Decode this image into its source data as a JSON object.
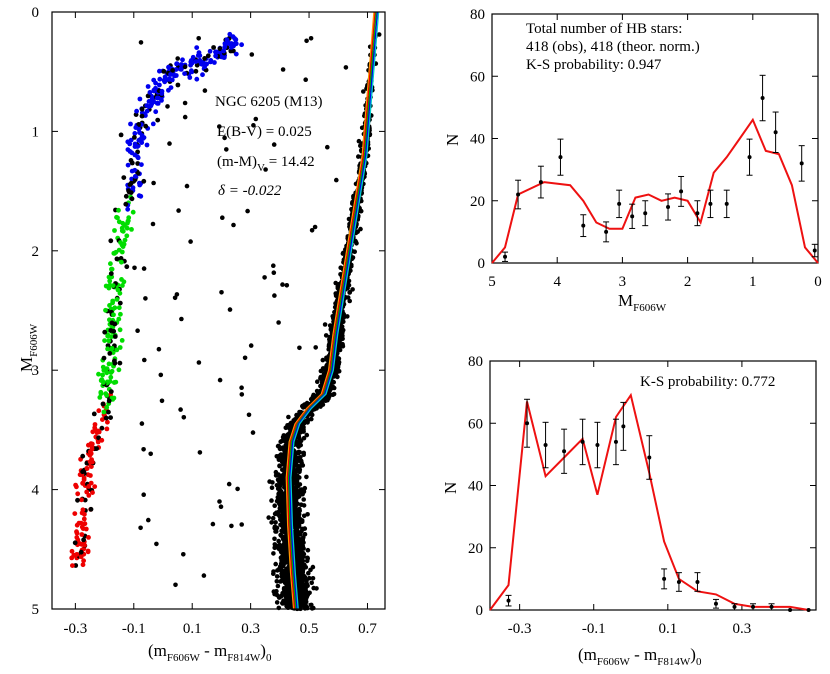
{
  "chart_data": [
    {
      "type": "scatter",
      "id": "cmd",
      "xlabel_main": "(m",
      "xlabel_sub1": "F606W",
      "xlabel_mid": " - m",
      "xlabel_sub2": "F814W",
      "xlabel_end": ")",
      "xlabel_sub3": "0",
      "ylabel_main": "M",
      "ylabel_sub": "F606W",
      "xlim": [
        -0.38,
        0.76
      ],
      "ylim": [
        5,
        0
      ],
      "y_inverted": true,
      "xticks": [
        -0.3,
        -0.1,
        0.1,
        0.3,
        0.5,
        0.7
      ],
      "xtick_labels": [
        "-0.3",
        "-0.1",
        "0.1",
        "0.3",
        "0.5",
        "0.7"
      ],
      "yticks": [
        0,
        1,
        2,
        3,
        4,
        5
      ],
      "ytick_labels": [
        "0",
        "1",
        "2",
        "3",
        "4",
        "5"
      ],
      "annotations": {
        "cluster": "NGC 6205 (M13)",
        "reddening": "E(B-V) = 0.025",
        "modulus_main": "(m-M)",
        "modulus_sub": "V",
        "modulus_value": " = 14.42",
        "delta": "δ = -0.022"
      },
      "hb_colors": {
        "blue": "#0000ee",
        "green": "#00dd00",
        "red": "#ee0000",
        "black": "#000000"
      },
      "isochrone_colors": [
        "#ff9900",
        "#ee0000",
        "#00aa00",
        "#0000ee",
        "#00cccc"
      ],
      "hb_sequence": [
        {
          "x": 0.25,
          "y": 0.22,
          "c": "blue"
        },
        {
          "x": 0.2,
          "y": 0.33,
          "c": "blue"
        },
        {
          "x": 0.15,
          "y": 0.4,
          "c": "blue"
        },
        {
          "x": 0.1,
          "y": 0.45,
          "c": "blue"
        },
        {
          "x": 0.04,
          "y": 0.52,
          "c": "blue"
        },
        {
          "x": -0.01,
          "y": 0.65,
          "c": "blue"
        },
        {
          "x": -0.05,
          "y": 0.8,
          "c": "blue"
        },
        {
          "x": -0.08,
          "y": 1.0,
          "c": "blue"
        },
        {
          "x": -0.1,
          "y": 1.25,
          "c": "blue"
        },
        {
          "x": -0.11,
          "y": 1.55,
          "c": "blue"
        },
        {
          "x": -0.14,
          "y": 1.8,
          "c": "green"
        },
        {
          "x": -0.16,
          "y": 2.1,
          "c": "green"
        },
        {
          "x": -0.17,
          "y": 2.4,
          "c": "green"
        },
        {
          "x": -0.175,
          "y": 2.7,
          "c": "green"
        },
        {
          "x": -0.18,
          "y": 2.95,
          "c": "green"
        },
        {
          "x": -0.19,
          "y": 3.2,
          "c": "green"
        },
        {
          "x": -0.21,
          "y": 3.4,
          "c": "red"
        },
        {
          "x": -0.24,
          "y": 3.65,
          "c": "red"
        },
        {
          "x": -0.26,
          "y": 3.9,
          "c": "red"
        },
        {
          "x": -0.27,
          "y": 4.15,
          "c": "red"
        },
        {
          "x": -0.28,
          "y": 4.4,
          "c": "red"
        },
        {
          "x": -0.29,
          "y": 4.6,
          "c": "red"
        }
      ],
      "isochrone": [
        {
          "x": 0.73,
          "y": 0.0
        },
        {
          "x": 0.72,
          "y": 0.3
        },
        {
          "x": 0.71,
          "y": 0.6
        },
        {
          "x": 0.7,
          "y": 0.9
        },
        {
          "x": 0.69,
          "y": 1.2
        },
        {
          "x": 0.67,
          "y": 1.5
        },
        {
          "x": 0.65,
          "y": 1.8
        },
        {
          "x": 0.63,
          "y": 2.1
        },
        {
          "x": 0.61,
          "y": 2.4
        },
        {
          "x": 0.59,
          "y": 2.7
        },
        {
          "x": 0.575,
          "y": 3.0
        },
        {
          "x": 0.55,
          "y": 3.2
        },
        {
          "x": 0.5,
          "y": 3.32
        },
        {
          "x": 0.46,
          "y": 3.45
        },
        {
          "x": 0.44,
          "y": 3.6
        },
        {
          "x": 0.43,
          "y": 3.9
        },
        {
          "x": 0.435,
          "y": 4.3
        },
        {
          "x": 0.445,
          "y": 4.7
        },
        {
          "x": 0.455,
          "y": 5.0
        }
      ]
    },
    {
      "type": "line",
      "id": "hb_mag",
      "xlabel_main": "M",
      "xlabel_sub": "F606W",
      "ylabel": "N",
      "xlim": [
        5,
        0
      ],
      "x_inverted": true,
      "ylim": [
        0,
        80
      ],
      "xticks": [
        5,
        4,
        3,
        2,
        1,
        0
      ],
      "xtick_labels": [
        "5",
        "4",
        "3",
        "2",
        "1",
        "0"
      ],
      "yticks": [
        0,
        20,
        40,
        60,
        80
      ],
      "ytick_labels": [
        "0",
        "20",
        "40",
        "60",
        "80"
      ],
      "annotations": [
        "Total number of HB stars:",
        "418 (obs), 418 (theor. norm.)",
        "K-S probability: 0.947"
      ],
      "line_color": "#ee1111",
      "theory_x": [
        5.0,
        4.8,
        4.6,
        4.2,
        3.8,
        3.6,
        3.4,
        3.2,
        3.0,
        2.8,
        2.6,
        2.4,
        2.2,
        2.0,
        1.8,
        1.6,
        1.4,
        1.2,
        1.0,
        0.8,
        0.6,
        0.4,
        0.2,
        0.0
      ],
      "theory_y": [
        0,
        5,
        22,
        26,
        25,
        20,
        13,
        11,
        11,
        21,
        22,
        20,
        21,
        20,
        13,
        29,
        34,
        40,
        46,
        36,
        35,
        25,
        5,
        0
      ],
      "obs_x": [
        4.8,
        4.6,
        4.25,
        3.95,
        3.6,
        3.25,
        3.05,
        2.85,
        2.65,
        2.3,
        2.1,
        1.85,
        1.65,
        1.4,
        1.05,
        0.85,
        0.65,
        0.25,
        0.05
      ],
      "obs_y": [
        2,
        22,
        26,
        34,
        12,
        10,
        19,
        15,
        16,
        18,
        23,
        16,
        19,
        19,
        34,
        53,
        42,
        32,
        4
      ],
      "obs_err": [
        1.5,
        4.6,
        5.1,
        5.8,
        3.5,
        3.2,
        4.4,
        3.9,
        4.0,
        4.2,
        4.8,
        4.0,
        4.4,
        4.4,
        5.8,
        7.3,
        6.5,
        5.7,
        2.0
      ]
    },
    {
      "type": "line",
      "id": "hb_color",
      "xlabel_main": "(m",
      "xlabel_sub1": "F606W",
      "xlabel_mid": " - m",
      "xlabel_sub2": "F814W",
      "xlabel_end": ")",
      "xlabel_sub3": "0",
      "ylabel": "N",
      "xlim": [
        -0.38,
        0.5
      ],
      "ylim": [
        0,
        80
      ],
      "xticks": [
        -0.3,
        -0.1,
        0.1,
        0.3
      ],
      "xtick_labels": [
        "-0.3",
        "-0.1",
        "0.1",
        "0.3"
      ],
      "yticks": [
        0,
        20,
        40,
        60,
        80
      ],
      "ytick_labels": [
        "0",
        "20",
        "40",
        "60",
        "80"
      ],
      "annotations": [
        "K-S probability: 0.772"
      ],
      "line_color": "#ee1111",
      "theory_x": [
        -0.38,
        -0.33,
        -0.28,
        -0.23,
        -0.18,
        -0.13,
        -0.09,
        -0.04,
        0.0,
        0.05,
        0.09,
        0.13,
        0.18,
        0.23,
        0.28,
        0.33,
        0.38,
        0.43,
        0.48
      ],
      "theory_y": [
        0,
        8,
        67,
        43,
        49,
        55,
        37,
        62,
        69,
        44,
        22,
        10,
        6,
        5,
        2,
        1,
        1,
        1,
        0
      ],
      "obs_x": [
        -0.33,
        -0.28,
        -0.23,
        -0.18,
        -0.13,
        -0.09,
        -0.04,
        -0.02,
        0.05,
        0.09,
        0.13,
        0.18,
        0.23,
        0.28,
        0.33,
        0.38,
        0.43,
        0.48
      ],
      "obs_y": [
        3,
        60,
        53,
        51,
        54,
        53,
        54,
        59,
        49,
        10,
        9,
        9,
        2,
        1,
        1,
        1,
        0,
        0
      ],
      "obs_err": [
        1.7,
        7.7,
        7.3,
        7.1,
        7.3,
        7.3,
        7.3,
        7.7,
        7.0,
        3.2,
        3.0,
        3.0,
        1.4,
        1.0,
        1.0,
        1.0,
        0.0,
        0.0
      ]
    }
  ]
}
